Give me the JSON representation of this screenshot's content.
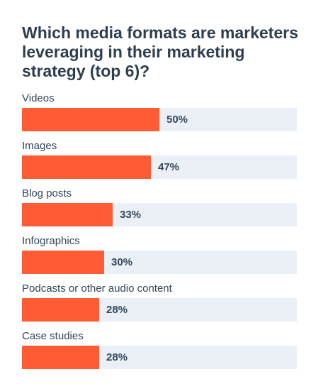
{
  "chart_data": {
    "type": "bar",
    "orientation": "horizontal",
    "title": "Which media formats are marketers leveraging in their marketing strategy (top 6)?",
    "categories": [
      "Videos",
      "Images",
      "Blog posts",
      "Infographics",
      "Podcasts or other audio content",
      "Case studies"
    ],
    "values": [
      50,
      47,
      33,
      30,
      28,
      28
    ],
    "value_labels": [
      "50%",
      "47%",
      "33%",
      "30%",
      "28%",
      "28%"
    ],
    "xlim": [
      0,
      100
    ],
    "grid": false,
    "legend": "none"
  },
  "colors": {
    "bar": "#ff5c35",
    "track": "#eaf0f6",
    "title": "#2d3e50",
    "text": "#33475b"
  }
}
